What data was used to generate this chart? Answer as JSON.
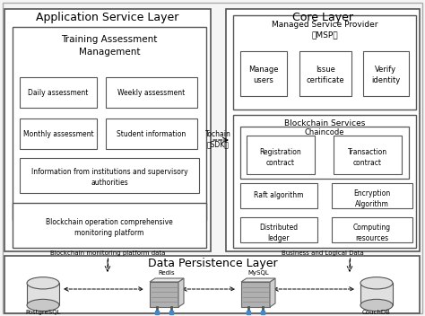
{
  "bg_color": "#f5f5f5",
  "outer_bg": "#f0f0f0",
  "box_fc": "#ffffff",
  "app_title": "Application Service Layer",
  "core_title": "Core Layer",
  "data_title": "Data Persistence Layer",
  "training_title1": "Training Assessment",
  "training_title2": "Management",
  "msp_title1": "Managed Service Provider",
  "msp_title2": "（MSP）",
  "blockchain_svc_title": "Blockchain Services",
  "chaincode_title": "Chaincode",
  "tochain": "Tochain",
  "sdk": "（SDK）",
  "bc_monitor_label": "Blockchain monitoring platform data",
  "biz_label": "Business and Logical Data",
  "monitor_text1": "Blockchain operation comprehensive",
  "monitor_text2": "monitoring platform",
  "daily": "Daily assessment",
  "weekly": "Weekly assessment",
  "monthly": "Monthly assessment",
  "student": "Student information",
  "info_line1": "Information from institutions and supervisory",
  "info_line2": "authorities",
  "manage": "Manage\nusers",
  "issue": "Issue\ncertificate",
  "verify": "Verify\nidentity",
  "reg": "Registration\ncontract",
  "trans": "Transaction\ncontract",
  "raft": "Raft algorithm",
  "encrypt1": "Encryption",
  "encrypt2": "Algorithm",
  "distrib1": "Distributed",
  "distrib2": "ledger",
  "compute1": "Computing",
  "compute2": "resources",
  "redis_label": "Redis",
  "mysql_label": "MySQL",
  "pg_label": "PostgreSQL",
  "couch_label": "CouchDB"
}
